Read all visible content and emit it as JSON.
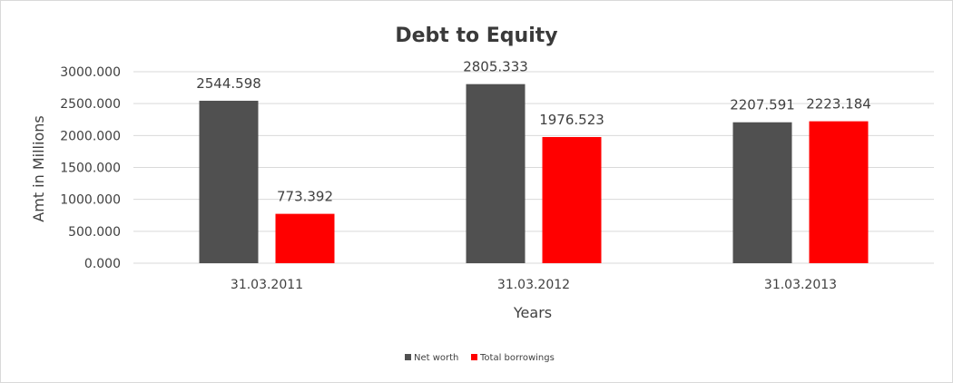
{
  "chart_data": {
    "type": "bar",
    "title": "Debt to Equity",
    "xlabel": "Years",
    "ylabel": "Amt in Millions",
    "categories": [
      "31.03.2011",
      "31.03.2012",
      "31.03.2013"
    ],
    "series": [
      {
        "name": "Net worth",
        "color": "#505050",
        "values": [
          2544.598,
          2805.333,
          2207.591
        ],
        "labels": [
          "2544.598",
          "2805.333",
          "2207.591"
        ]
      },
      {
        "name": "Total borrowings",
        "color": "#ff0000",
        "values": [
          773.392,
          1976.523,
          2223.184
        ],
        "labels": [
          "773.392",
          "1976.523",
          "2223.184"
        ]
      }
    ],
    "ylim": [
      0,
      3000
    ],
    "yticks": [
      0,
      500,
      1000,
      1500,
      2000,
      2500,
      3000
    ],
    "ytick_labels": [
      "0.000",
      "500.000",
      "1000.000",
      "1500.000",
      "2000.000",
      "2500.000",
      "3000.000"
    ],
    "grid": true,
    "legend_position": "bottom"
  }
}
